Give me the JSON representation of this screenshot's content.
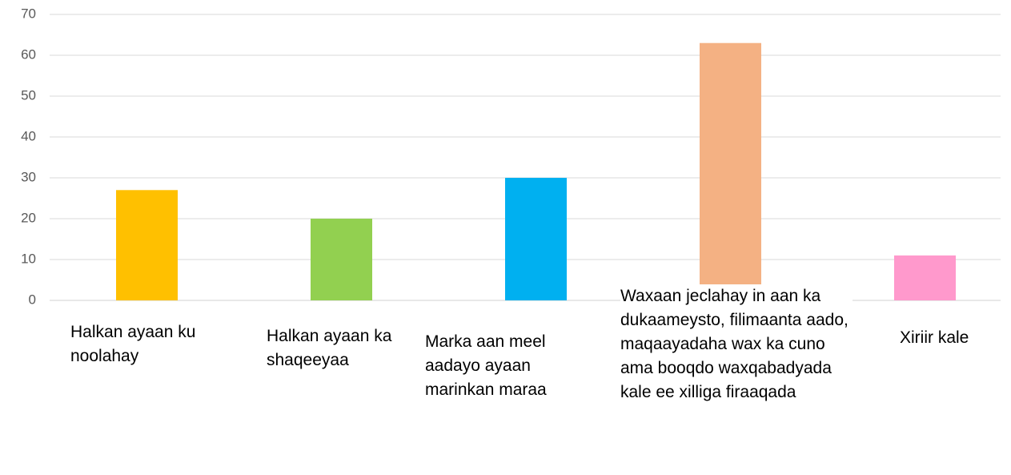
{
  "chart_data": {
    "type": "bar",
    "categories": [
      "Halkan ayaan ku noolahay",
      "Halkan ayaan ka shaqeeyaa",
      "Marka aan meel aadayo ayaan marinkan maraa",
      "Waxaan jeclahay in aan ka dukaameysto, filimaanta aado, maqaayadaha wax ka cuno ama booqdo waxqabadyada kale ee xilliga firaaqada",
      "Xiriir kale"
    ],
    "values": [
      27,
      20,
      30,
      63,
      11
    ],
    "colors": [
      "#ffc000",
      "#92d050",
      "#00b0f0",
      "#f4b183",
      "#ff99cc"
    ],
    "ylim": [
      0,
      70
    ],
    "yticks": [
      0,
      10,
      20,
      30,
      40,
      50,
      60,
      70
    ],
    "grid": true
  }
}
